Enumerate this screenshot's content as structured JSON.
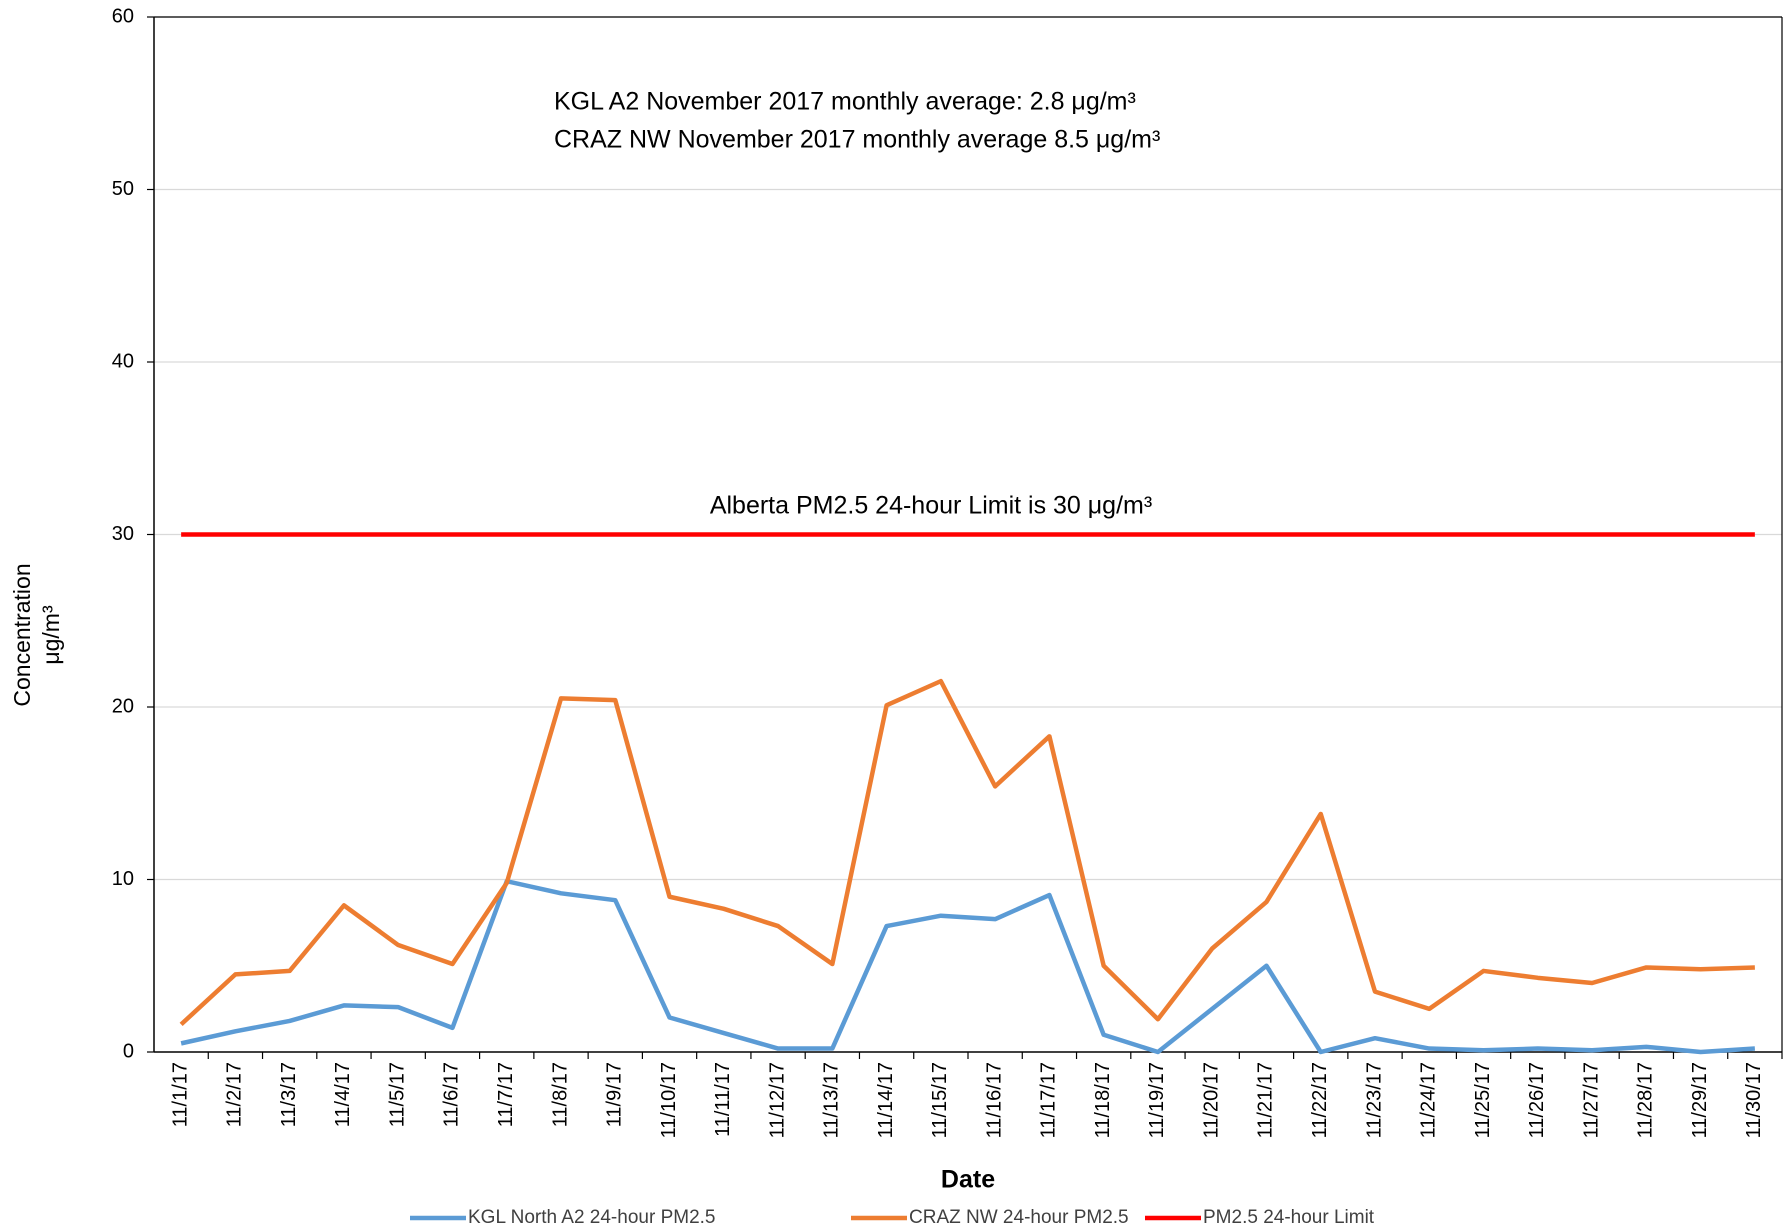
{
  "chart_data": {
    "type": "line",
    "annotations": [
      "KGL A2 November 2017 monthly average: 2.8 μg/m³",
      "CRAZ NW November 2017 monthly average 8.5 μg/m³",
      "Alberta PM2.5 24-hour Limit is 30 μg/m³"
    ],
    "xlabel": "Date",
    "ylabel": [
      "Concentration",
      "μg/m³"
    ],
    "categories": [
      "11/1/17",
      "11/2/17",
      "11/3/17",
      "11/4/17",
      "11/5/17",
      "11/6/17",
      "11/7/17",
      "11/8/17",
      "11/9/17",
      "11/10/17",
      "11/11/17",
      "11/12/17",
      "11/13/17",
      "11/14/17",
      "11/15/17",
      "11/16/17",
      "11/17/17",
      "11/18/17",
      "11/19/17",
      "11/20/17",
      "11/21/17",
      "11/22/17",
      "11/23/17",
      "11/24/17",
      "11/25/17",
      "11/26/17",
      "11/27/17",
      "11/28/17",
      "11/29/17",
      "11/30/17"
    ],
    "series": [
      {
        "name": "KGL North A2 24-hour PM2.5",
        "color": "#5b9bd5",
        "values": [
          0.5,
          1.2,
          1.8,
          2.7,
          2.6,
          1.4,
          9.9,
          9.2,
          8.8,
          2.0,
          1.1,
          0.2,
          0.2,
          7.3,
          7.9,
          7.7,
          9.1,
          1.0,
          0.0,
          2.5,
          5.0,
          0.0,
          0.8,
          0.2,
          0.1,
          0.2,
          0.1,
          0.3,
          0.0,
          0.2
        ]
      },
      {
        "name": "CRAZ NW 24-hour PM2.5",
        "color": "#ed7d31",
        "values": [
          1.6,
          4.5,
          4.7,
          8.5,
          6.2,
          5.1,
          9.8,
          20.5,
          20.4,
          9.0,
          8.3,
          7.3,
          5.1,
          20.1,
          21.5,
          15.4,
          18.3,
          5.0,
          1.9,
          6.0,
          8.7,
          13.8,
          3.5,
          2.5,
          4.7,
          4.3,
          4.0,
          4.9,
          4.8,
          4.9
        ]
      },
      {
        "name": "PM2.5 24-hour Limit",
        "color": "#ff0000",
        "values": [
          30,
          30,
          30,
          30,
          30,
          30,
          30,
          30,
          30,
          30,
          30,
          30,
          30,
          30,
          30,
          30,
          30,
          30,
          30,
          30,
          30,
          30,
          30,
          30,
          30,
          30,
          30,
          30,
          30,
          30
        ]
      }
    ],
    "ylim": [
      0,
      60
    ],
    "yticks": [
      0,
      10,
      20,
      30,
      40,
      50,
      60
    ],
    "grid": true,
    "legend": "bottom"
  }
}
